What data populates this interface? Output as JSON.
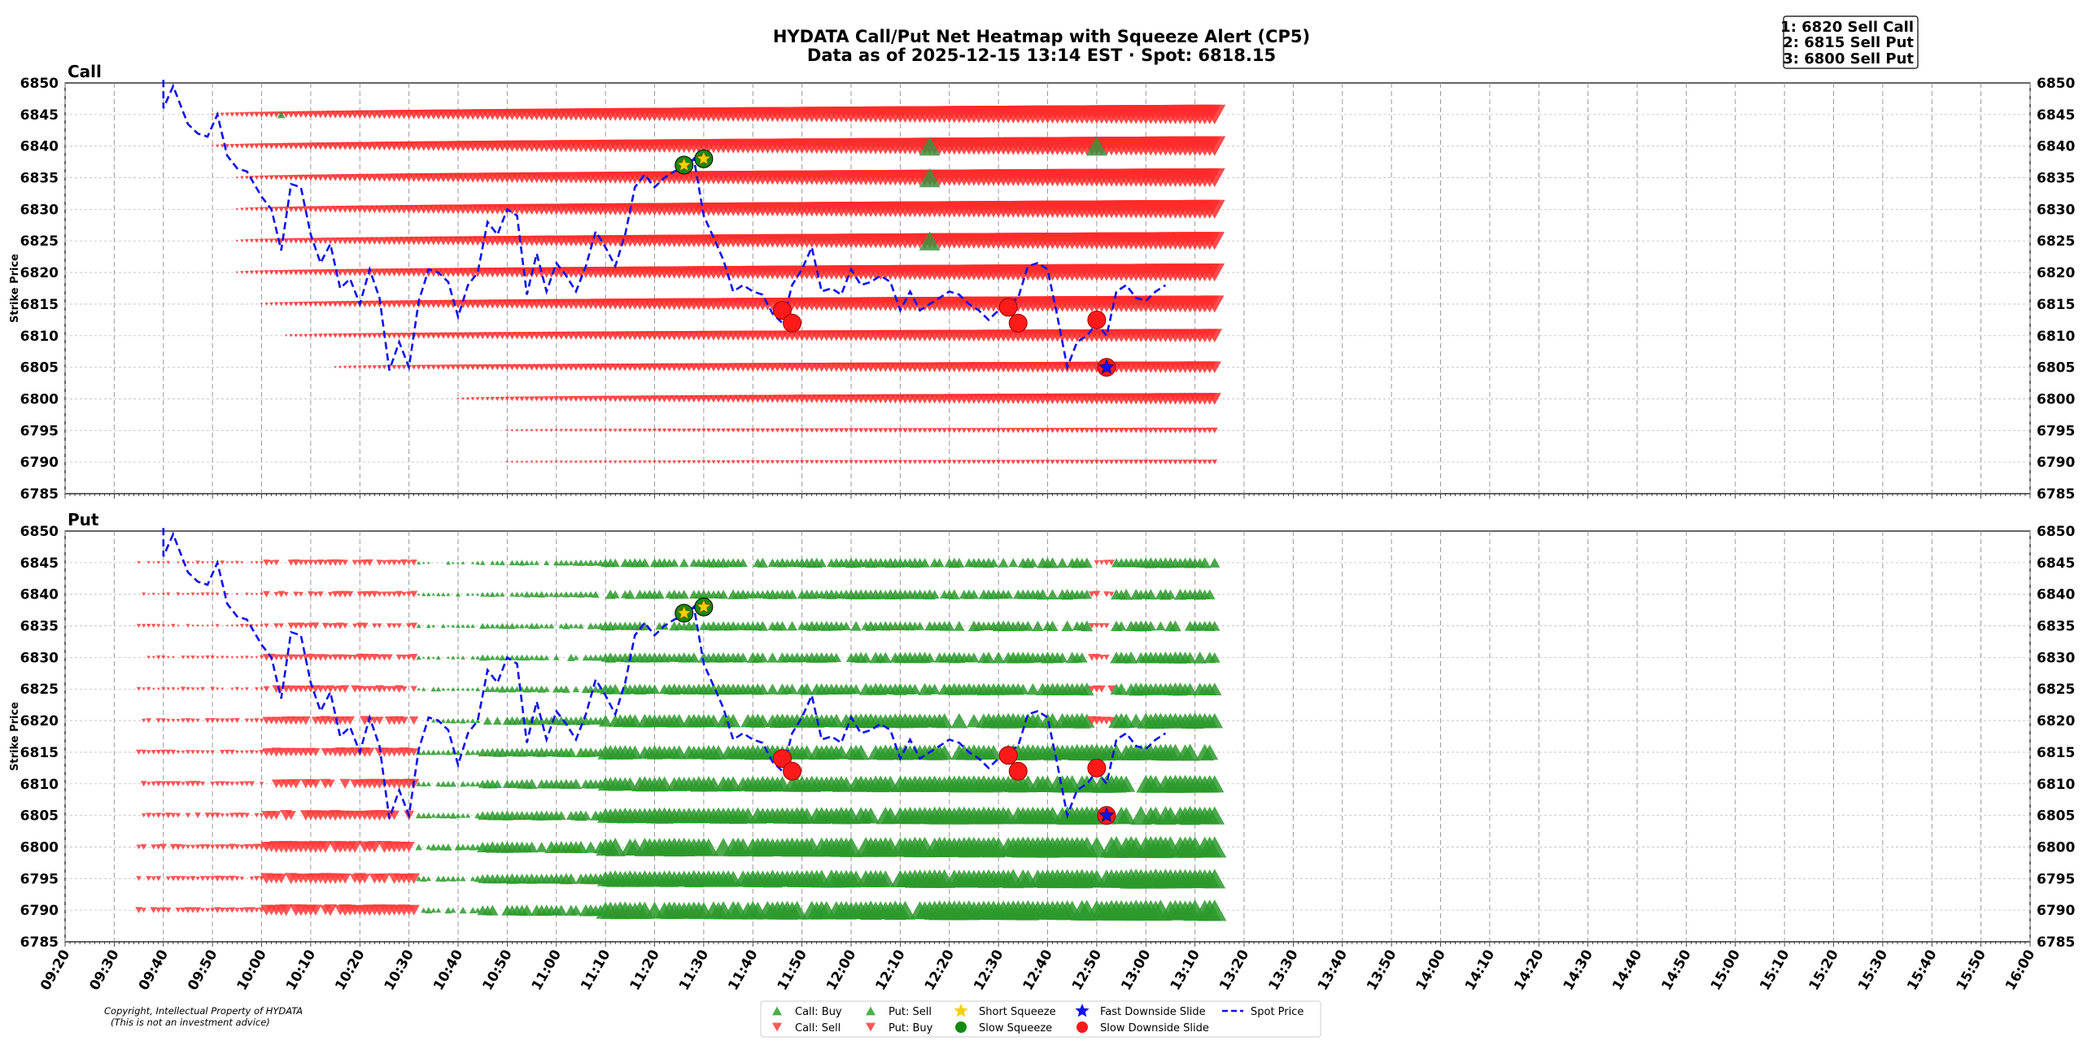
{
  "title_line1": "HYDATA Call/Put Net Heatmap with Squeeze Alert (CP5)",
  "title_line2": "Data as of 2025-12-15 13:14 EST · Spot: 6818.15",
  "alerts": [
    "1: 6820 Sell Call",
    "2: 6815 Sell Put",
    "3: 6800 Sell Put"
  ],
  "copyright": [
    "Copyright, Intellectual Property of HYDATA",
    "(This is not an investment advice)"
  ],
  "legend": [
    {
      "label": "Call: Buy",
      "marker": "triangle-up",
      "color": "#2ca02c"
    },
    {
      "label": "Call: Sell",
      "marker": "triangle-down",
      "color": "#ff3b3b"
    },
    {
      "label": "Put: Sell",
      "marker": "triangle-up",
      "color": "#2ca02c"
    },
    {
      "label": "Put: Buy",
      "marker": "triangle-down",
      "color": "#ff3b3b"
    },
    {
      "label": "Short Squeeze",
      "marker": "star",
      "color": "#f5d000"
    },
    {
      "label": "Slow Squeeze",
      "marker": "circle",
      "color": "#138a13"
    },
    {
      "label": "Fast Downside Slide",
      "marker": "star",
      "color": "#1010ff"
    },
    {
      "label": "Slow Downside Slide",
      "marker": "circle",
      "color": "#ff1a1a"
    },
    {
      "label": "Spot Price",
      "marker": "dashed-line",
      "color": "#1010ee"
    }
  ],
  "chart_data": {
    "type": "scatter",
    "panels": [
      {
        "title": "Call",
        "ylabel": "Strike Price"
      },
      {
        "title": "Put",
        "ylabel": "Strike Price"
      }
    ],
    "ylim": [
      6785,
      6850
    ],
    "yticks": [
      6785,
      6790,
      6795,
      6800,
      6805,
      6810,
      6815,
      6820,
      6825,
      6830,
      6835,
      6840,
      6845,
      6850
    ],
    "xlim": [
      "09:20",
      "16:00"
    ],
    "xticks": [
      "09:20",
      "09:30",
      "09:40",
      "09:50",
      "10:00",
      "10:10",
      "10:20",
      "10:30",
      "10:40",
      "10:50",
      "11:00",
      "11:10",
      "11:20",
      "11:30",
      "11:40",
      "11:50",
      "12:00",
      "12:10",
      "12:20",
      "12:30",
      "12:40",
      "12:50",
      "13:00",
      "13:10",
      "13:20",
      "13:30",
      "13:40",
      "13:50",
      "14:00",
      "14:10",
      "14:20",
      "14:30",
      "14:40",
      "14:50",
      "15:00",
      "15:10",
      "15:20",
      "15:30",
      "15:40",
      "15:50",
      "16:00"
    ],
    "grid": true,
    "legend_position": "bottom-center",
    "spot_price_series": [
      [
        "09:40",
        6853
      ],
      [
        "09:40",
        6846
      ],
      [
        "09:42",
        6849.5
      ],
      [
        "09:45",
        6843.5
      ],
      [
        "09:47",
        6842
      ],
      [
        "09:49",
        6841.5
      ],
      [
        "09:51",
        6845
      ],
      [
        "09:53",
        6838.5
      ],
      [
        "09:55",
        6836.5
      ],
      [
        "09:57",
        6836
      ],
      [
        "10:00",
        6832
      ],
      [
        "10:02",
        6830
      ],
      [
        "10:04",
        6823.5
      ],
      [
        "10:06",
        6834
      ],
      [
        "10:08",
        6833.5
      ],
      [
        "10:10",
        6826
      ],
      [
        "10:12",
        6821.5
      ],
      [
        "10:14",
        6824.5
      ],
      [
        "10:16",
        6817.5
      ],
      [
        "10:18",
        6819
      ],
      [
        "10:20",
        6815
      ],
      [
        "10:22",
        6820.5
      ],
      [
        "10:24",
        6816
      ],
      [
        "10:26",
        6804.5
      ],
      [
        "10:28",
        6809
      ],
      [
        "10:30",
        6805
      ],
      [
        "10:32",
        6815.5
      ],
      [
        "10:34",
        6820.5
      ],
      [
        "10:36",
        6820
      ],
      [
        "10:38",
        6818.5
      ],
      [
        "10:40",
        6813
      ],
      [
        "10:42",
        6818
      ],
      [
        "10:44",
        6820
      ],
      [
        "10:46",
        6828
      ],
      [
        "10:48",
        6826
      ],
      [
        "10:50",
        6830
      ],
      [
        "10:52",
        6829
      ],
      [
        "10:54",
        6816.5
      ],
      [
        "10:56",
        6823
      ],
      [
        "10:58",
        6817
      ],
      [
        "11:00",
        6821.5
      ],
      [
        "11:02",
        6819.5
      ],
      [
        "11:04",
        6817
      ],
      [
        "11:06",
        6821
      ],
      [
        "11:08",
        6826.5
      ],
      [
        "11:10",
        6824
      ],
      [
        "11:12",
        6821
      ],
      [
        "11:14",
        6826
      ],
      [
        "11:16",
        6833.5
      ],
      [
        "11:18",
        6835.5
      ],
      [
        "11:20",
        6833.5
      ],
      [
        "11:22",
        6835
      ],
      [
        "11:24",
        6836
      ],
      [
        "11:26",
        6836.5
      ],
      [
        "11:28",
        6838
      ],
      [
        "11:30",
        6829
      ],
      [
        "11:32",
        6825.5
      ],
      [
        "11:34",
        6822
      ],
      [
        "11:36",
        6817
      ],
      [
        "11:38",
        6818
      ],
      [
        "11:40",
        6817
      ],
      [
        "11:42",
        6816.5
      ],
      [
        "11:44",
        6813.5
      ],
      [
        "11:46",
        6812
      ],
      [
        "11:48",
        6818
      ],
      [
        "11:50",
        6820.5
      ],
      [
        "11:52",
        6824
      ],
      [
        "11:54",
        6817
      ],
      [
        "11:56",
        6817.5
      ],
      [
        "11:58",
        6816.5
      ],
      [
        "12:00",
        6820.5
      ],
      [
        "12:02",
        6818
      ],
      [
        "12:04",
        6818.5
      ],
      [
        "12:06",
        6819.5
      ],
      [
        "12:08",
        6818.5
      ],
      [
        "12:10",
        6814
      ],
      [
        "12:12",
        6817
      ],
      [
        "12:14",
        6814
      ],
      [
        "12:16",
        6815
      ],
      [
        "12:18",
        6816
      ],
      [
        "12:20",
        6817
      ],
      [
        "12:22",
        6816.5
      ],
      [
        "12:24",
        6815
      ],
      [
        "12:26",
        6814
      ],
      [
        "12:28",
        6812.5
      ],
      [
        "12:30",
        6814
      ],
      [
        "12:32",
        6815
      ],
      [
        "12:34",
        6816
      ],
      [
        "12:36",
        6821
      ],
      [
        "12:38",
        6821.5
      ],
      [
        "12:40",
        6820.5
      ],
      [
        "12:42",
        6813
      ],
      [
        "12:44",
        6805
      ],
      [
        "12:46",
        6809
      ],
      [
        "12:48",
        6810
      ],
      [
        "12:50",
        6812
      ],
      [
        "12:52",
        6810
      ],
      [
        "12:54",
        6817
      ],
      [
        "12:56",
        6818
      ],
      [
        "12:58",
        6816
      ],
      [
        "13:00",
        6815.5
      ],
      [
        "13:02",
        6817
      ],
      [
        "13:04",
        6818
      ]
    ],
    "call_signals": [
      {
        "type": "Short Squeeze",
        "time": "11:26",
        "price": 6837
      },
      {
        "type": "Short Squeeze",
        "time": "11:30",
        "price": 6838
      },
      {
        "type": "Slow Downside Slide",
        "time": "11:46",
        "price": 6814
      },
      {
        "type": "Slow Downside Slide",
        "time": "11:48",
        "price": 6812
      },
      {
        "type": "Slow Downside Slide",
        "time": "12:32",
        "price": 6814.5
      },
      {
        "type": "Slow Downside Slide",
        "time": "12:34",
        "price": 6812
      },
      {
        "type": "Slow Downside Slide",
        "time": "12:50",
        "price": 6812.5
      },
      {
        "type": "Fast Downside Slide",
        "time": "12:52",
        "price": 6805
      }
    ],
    "call_heatmap_rows": [
      {
        "strike": 6845,
        "side": "sell",
        "start": "09:50",
        "max_size": 1.0
      },
      {
        "strike": 6840,
        "side": "sell",
        "start": "09:50",
        "max_size": 1.0
      },
      {
        "strike": 6835,
        "side": "sell",
        "start": "09:55",
        "max_size": 0.95
      },
      {
        "strike": 6830,
        "side": "sell",
        "start": "09:55",
        "max_size": 0.95
      },
      {
        "strike": 6825,
        "side": "sell",
        "start": "09:55",
        "max_size": 0.9
      },
      {
        "strike": 6820,
        "side": "sell",
        "start": "09:55",
        "max_size": 0.9
      },
      {
        "strike": 6815,
        "side": "sell",
        "start": "10:00",
        "max_size": 0.85
      },
      {
        "strike": 6810,
        "side": "sell",
        "start": "10:05",
        "max_size": 0.65
      },
      {
        "strike": 6805,
        "side": "sell",
        "start": "10:15",
        "max_size": 0.55
      },
      {
        "strike": 6800,
        "side": "sell",
        "start": "10:40",
        "max_size": 0.55
      },
      {
        "strike": 6795,
        "side": "sell",
        "start": "10:50",
        "max_size": 0.2
      },
      {
        "strike": 6790,
        "side": "sell",
        "start": "10:50",
        "max_size": 0.15
      }
    ],
    "put_heatmap_rows": [
      {
        "strike": 6845,
        "side": "mixed",
        "max_size": 0.45
      },
      {
        "strike": 6840,
        "side": "mixed",
        "max_size": 0.45
      },
      {
        "strike": 6835,
        "side": "mixed",
        "max_size": 0.45
      },
      {
        "strike": 6830,
        "side": "mixed",
        "max_size": 0.5
      },
      {
        "strike": 6825,
        "side": "mixed",
        "max_size": 0.55
      },
      {
        "strike": 6820,
        "side": "mixed",
        "max_size": 0.7
      },
      {
        "strike": 6815,
        "side": "mixed",
        "max_size": 0.75
      },
      {
        "strike": 6810,
        "side": "mixed",
        "max_size": 0.8
      },
      {
        "strike": 6805,
        "side": "mixed",
        "max_size": 0.85
      },
      {
        "strike": 6800,
        "side": "mixed",
        "max_size": 1.0
      },
      {
        "strike": 6795,
        "side": "mixed",
        "max_size": 0.9
      },
      {
        "strike": 6790,
        "side": "mixed",
        "max_size": 0.95
      }
    ],
    "put_signals": [
      {
        "type": "Short Squeeze",
        "time": "11:26",
        "price": 6837
      },
      {
        "type": "Short Squeeze",
        "time": "11:30",
        "price": 6838
      },
      {
        "type": "Slow Downside Slide",
        "time": "11:46",
        "price": 6814
      },
      {
        "type": "Slow Downside Slide",
        "time": "11:48",
        "price": 6812
      },
      {
        "type": "Slow Downside Slide",
        "time": "12:32",
        "price": 6814.5
      },
      {
        "type": "Slow Downside Slide",
        "time": "12:34",
        "price": 6812
      },
      {
        "type": "Slow Downside Slide",
        "time": "12:50",
        "price": 6812.5
      },
      {
        "type": "Fast Downside Slide",
        "time": "12:52",
        "price": 6805
      }
    ]
  }
}
